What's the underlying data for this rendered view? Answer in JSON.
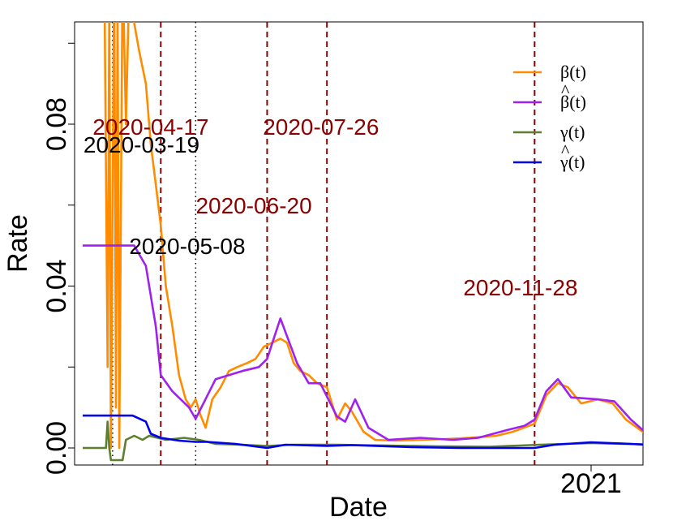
{
  "chart_data": {
    "type": "line",
    "xlabel": "Date",
    "ylabel": "Rate",
    "ylim": [
      0,
      0.1
    ],
    "x_tick_labels": [
      {
        "date": "2021-01-01",
        "label": "2021"
      }
    ],
    "y_ticks": [
      {
        "value": 0.0,
        "label": "0.00"
      },
      {
        "value": 0.04,
        "label": "0.04"
      },
      {
        "value": 0.08,
        "label": "0.08"
      }
    ],
    "legend": {
      "position": "top-right",
      "entries": [
        {
          "label": "β(t)",
          "hat": false,
          "color": "#FF8C00"
        },
        {
          "label": "β(t)",
          "hat": true,
          "color": "#A020F0"
        },
        {
          "label": "γ(t)",
          "hat": false,
          "color": "#5E7F2E"
        },
        {
          "label": "γ(t)",
          "hat": true,
          "color": "#0000EE"
        }
      ]
    },
    "vertical_markers": [
      {
        "date": "2020-03-19",
        "style": "dotted",
        "color": "#000000",
        "label": "2020-03-19"
      },
      {
        "date": "2020-04-17",
        "style": "dashed",
        "color": "#8B0000",
        "label": "2020-04-17"
      },
      {
        "date": "2020-05-08",
        "style": "dotted",
        "color": "#000000",
        "label": "2020-05-08"
      },
      {
        "date": "2020-06-20",
        "style": "dashed",
        "color": "#8B0000",
        "label": "2020-06-20"
      },
      {
        "date": "2020-07-26",
        "style": "dashed",
        "color": "#8B0000",
        "label": "2020-07-26"
      },
      {
        "date": "2020-11-28",
        "style": "dashed",
        "color": "#8B0000",
        "label": "2020-11-28"
      }
    ],
    "series": [
      {
        "name": "β(t)",
        "color": "#FF8C00",
        "points": [
          [
            "2020-03-14",
            0.12
          ],
          [
            "2020-03-16",
            0.02
          ],
          [
            "2020-03-17",
            0.11
          ],
          [
            "2020-03-18",
            0.0
          ],
          [
            "2020-03-20",
            0.12
          ],
          [
            "2020-03-21",
            0.01
          ],
          [
            "2020-03-22",
            0.11
          ],
          [
            "2020-03-23",
            0.0
          ],
          [
            "2020-03-25",
            0.12
          ],
          [
            "2020-03-27",
            0.08
          ],
          [
            "2020-03-29",
            0.115
          ],
          [
            "2020-04-01",
            0.105
          ],
          [
            "2020-04-04",
            0.098
          ],
          [
            "2020-04-08",
            0.09
          ],
          [
            "2020-04-11",
            0.075
          ],
          [
            "2020-04-14",
            0.065
          ],
          [
            "2020-04-17",
            0.055
          ],
          [
            "2020-04-20",
            0.04
          ],
          [
            "2020-04-24",
            0.03
          ],
          [
            "2020-04-28",
            0.018
          ],
          [
            "2020-05-02",
            0.012
          ],
          [
            "2020-05-05",
            0.01
          ],
          [
            "2020-05-08",
            0.012
          ],
          [
            "2020-05-11",
            0.008
          ],
          [
            "2020-05-14",
            0.005
          ],
          [
            "2020-05-18",
            0.012
          ],
          [
            "2020-05-23",
            0.015
          ],
          [
            "2020-05-28",
            0.019
          ],
          [
            "2020-06-02",
            0.02
          ],
          [
            "2020-06-08",
            0.021
          ],
          [
            "2020-06-13",
            0.022
          ],
          [
            "2020-06-18",
            0.025
          ],
          [
            "2020-06-23",
            0.026
          ],
          [
            "2020-06-28",
            0.027
          ],
          [
            "2020-07-02",
            0.026
          ],
          [
            "2020-07-06",
            0.021
          ],
          [
            "2020-07-10",
            0.019
          ],
          [
            "2020-07-15",
            0.018
          ],
          [
            "2020-07-20",
            0.016
          ],
          [
            "2020-07-26",
            0.015
          ],
          [
            "2020-08-01",
            0.007
          ],
          [
            "2020-08-06",
            0.011
          ],
          [
            "2020-08-10",
            0.009
          ],
          [
            "2020-08-17",
            0.004
          ],
          [
            "2020-08-24",
            0.002
          ],
          [
            "2020-09-05",
            0.0018
          ],
          [
            "2020-09-20",
            0.002
          ],
          [
            "2020-10-05",
            0.0022
          ],
          [
            "2020-10-20",
            0.0025
          ],
          [
            "2020-11-05",
            0.003
          ],
          [
            "2020-11-15",
            0.004
          ],
          [
            "2020-11-28",
            0.006
          ],
          [
            "2020-12-05",
            0.013
          ],
          [
            "2020-12-12",
            0.016
          ],
          [
            "2020-12-18",
            0.015
          ],
          [
            "2020-12-26",
            0.011
          ],
          [
            "2021-01-05",
            0.012
          ],
          [
            "2021-01-14",
            0.011
          ],
          [
            "2021-01-22",
            0.007
          ],
          [
            "2021-02-01",
            0.004
          ],
          [
            "2021-02-10",
            0.002
          ],
          [
            "2021-02-20",
            0.001
          ],
          [
            "2021-03-15",
            0.0004
          ],
          [
            "2021-04-20",
            0.0003
          ]
        ]
      },
      {
        "name": "β(t)",
        "hat": true,
        "color": "#A020F0",
        "points": [
          [
            "2020-03-01",
            0.05
          ],
          [
            "2020-03-19",
            0.05
          ],
          [
            "2020-04-01",
            0.05
          ],
          [
            "2020-04-08",
            0.045
          ],
          [
            "2020-04-14",
            0.03
          ],
          [
            "2020-04-17",
            0.018
          ],
          [
            "2020-04-24",
            0.014
          ],
          [
            "2020-05-04",
            0.01
          ],
          [
            "2020-05-08",
            0.0072
          ],
          [
            "2020-05-20",
            0.017
          ],
          [
            "2020-06-05",
            0.019
          ],
          [
            "2020-06-15",
            0.02
          ],
          [
            "2020-06-20",
            0.022
          ],
          [
            "2020-06-28",
            0.032
          ],
          [
            "2020-07-08",
            0.021
          ],
          [
            "2020-07-15",
            0.016
          ],
          [
            "2020-07-22",
            0.016
          ],
          [
            "2020-08-01",
            0.0078
          ],
          [
            "2020-08-06",
            0.0065
          ],
          [
            "2020-08-12",
            0.012
          ],
          [
            "2020-08-20",
            0.005
          ],
          [
            "2020-09-01",
            0.002
          ],
          [
            "2020-09-20",
            0.0025
          ],
          [
            "2020-10-10",
            0.002
          ],
          [
            "2020-10-25",
            0.0025
          ],
          [
            "2020-11-12",
            0.0045
          ],
          [
            "2020-11-22",
            0.0055
          ],
          [
            "2020-11-28",
            0.007
          ],
          [
            "2020-12-05",
            0.014
          ],
          [
            "2020-12-12",
            0.017
          ],
          [
            "2020-12-20",
            0.0125
          ],
          [
            "2021-01-05",
            0.012
          ],
          [
            "2021-01-15",
            0.0115
          ],
          [
            "2021-01-25",
            0.007
          ],
          [
            "2021-02-05",
            0.003
          ],
          [
            "2021-02-20",
            0.001
          ],
          [
            "2021-03-15",
            0.0005
          ],
          [
            "2021-04-15",
            0.0005
          ]
        ]
      },
      {
        "name": "γ(t)",
        "color": "#5E7F2E",
        "points": [
          [
            "2020-03-01",
            0.0
          ],
          [
            "2020-03-15",
            0.0
          ],
          [
            "2020-03-16",
            0.0065
          ],
          [
            "2020-03-17",
            0.0
          ],
          [
            "2020-03-18",
            -0.003
          ],
          [
            "2020-03-20",
            -0.003
          ],
          [
            "2020-03-25",
            -0.003
          ],
          [
            "2020-03-27",
            0.002
          ],
          [
            "2020-04-01",
            0.003
          ],
          [
            "2020-04-06",
            0.002
          ],
          [
            "2020-04-10",
            0.003
          ],
          [
            "2020-04-15",
            0.0025
          ],
          [
            "2020-04-20",
            0.002
          ],
          [
            "2020-05-01",
            0.0025
          ],
          [
            "2020-05-10",
            0.002
          ],
          [
            "2020-05-20",
            0.001
          ],
          [
            "2020-06-05",
            0.0008
          ],
          [
            "2020-06-20",
            0.0005
          ],
          [
            "2020-07-05",
            0.0008
          ],
          [
            "2020-08-01",
            0.0008
          ],
          [
            "2020-09-01",
            0.0006
          ],
          [
            "2020-10-01",
            0.0004
          ],
          [
            "2020-11-01",
            0.0003
          ],
          [
            "2020-12-01",
            0.0008
          ],
          [
            "2021-01-01",
            0.0012
          ],
          [
            "2021-02-01",
            0.0009
          ],
          [
            "2021-03-01",
            0.0005
          ],
          [
            "2021-04-20",
            0.0003
          ]
        ]
      },
      {
        "name": "γ(t)",
        "hat": true,
        "color": "#0000EE",
        "points": [
          [
            "2020-03-01",
            0.008
          ],
          [
            "2020-03-19",
            0.008
          ],
          [
            "2020-03-31",
            0.008
          ],
          [
            "2020-04-08",
            0.0065
          ],
          [
            "2020-04-11",
            0.0035
          ],
          [
            "2020-04-17",
            0.0025
          ],
          [
            "2020-04-28",
            0.0018
          ],
          [
            "2020-05-08",
            0.0015
          ],
          [
            "2020-05-15",
            0.0015
          ],
          [
            "2020-06-01",
            0.001
          ],
          [
            "2020-06-20",
            0.0
          ],
          [
            "2020-07-01",
            0.0008
          ],
          [
            "2020-07-26",
            0.0005
          ],
          [
            "2020-08-10",
            0.0007
          ],
          [
            "2020-09-15",
            0.0002
          ],
          [
            "2020-10-15",
            0.0
          ],
          [
            "2020-11-28",
            0.0
          ],
          [
            "2020-12-10",
            0.0008
          ],
          [
            "2021-01-01",
            0.0014
          ],
          [
            "2021-01-25",
            0.001
          ],
          [
            "2021-02-20",
            0.0004
          ],
          [
            "2021-04-15",
            0.0004
          ]
        ]
      }
    ]
  }
}
